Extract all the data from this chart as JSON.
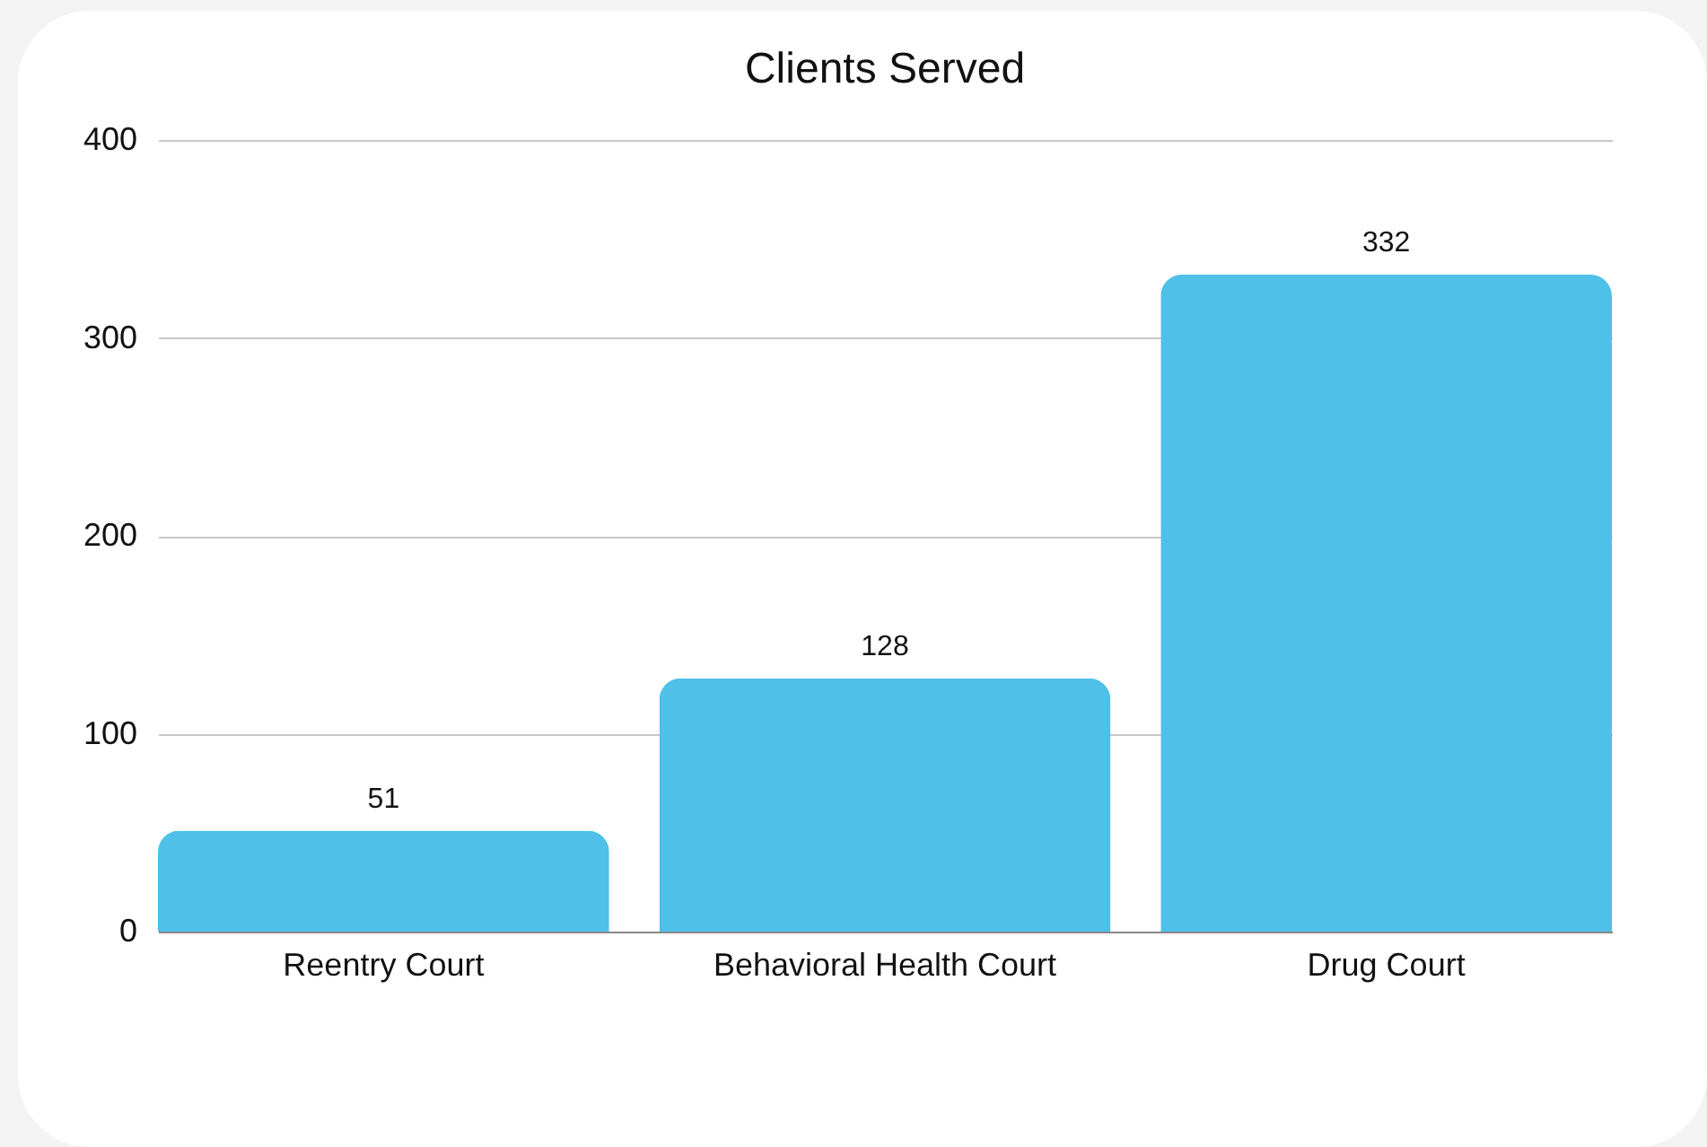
{
  "chart_data": {
    "type": "bar",
    "title": "Clients Served",
    "categories": [
      "Reentry Court",
      "Behavioral Health Court",
      "Drug Court"
    ],
    "values": [
      51,
      128,
      332
    ],
    "color": "#4fc0e8",
    "ylim": [
      0,
      400
    ],
    "yticks": [
      0,
      100,
      200,
      300,
      400
    ],
    "grid": "y",
    "data_labels": true
  }
}
